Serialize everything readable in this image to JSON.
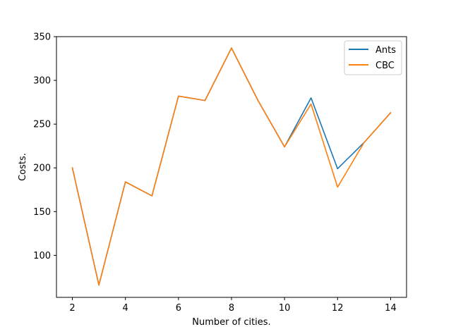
{
  "chart_data": {
    "type": "line",
    "title": "",
    "xlabel": "Number of cities.",
    "ylabel": "Costs.",
    "x": [
      2,
      3,
      4,
      5,
      6,
      7,
      8,
      9,
      10,
      11,
      12,
      13,
      14
    ],
    "xlim": [
      1.4,
      14.6
    ],
    "ylim": [
      52,
      350
    ],
    "xticks": [
      2,
      4,
      6,
      8,
      10,
      12,
      14
    ],
    "yticks": [
      100,
      150,
      200,
      250,
      300,
      350
    ],
    "grid": false,
    "legend_position": "top-right",
    "series": [
      {
        "name": "Ants",
        "color": "#1f77b4",
        "values": [
          200,
          66,
          184,
          168,
          282,
          277,
          337,
          277,
          224,
          280,
          199,
          229,
          263
        ]
      },
      {
        "name": "CBC",
        "color": "#ff7f0e",
        "values": [
          200,
          66,
          184,
          168,
          282,
          277,
          337,
          277,
          224,
          273,
          178,
          229,
          263
        ]
      }
    ]
  }
}
